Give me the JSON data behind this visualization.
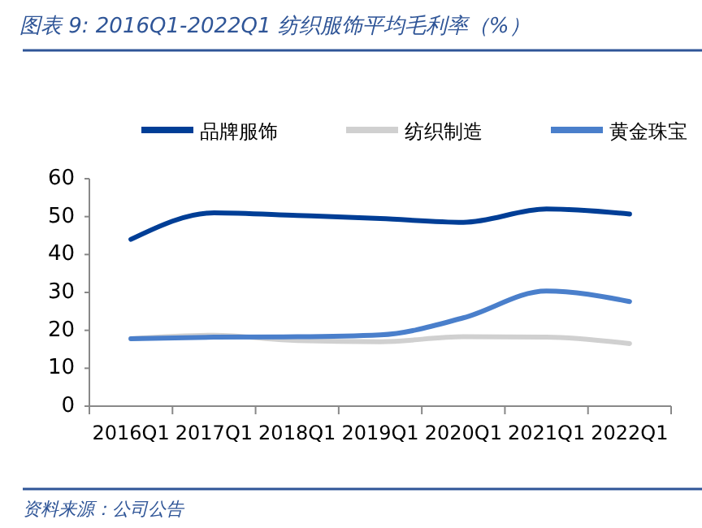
{
  "chart_data": {
    "type": "line",
    "title": "图表 9:  2016Q1-2022Q1 纺织服饰平均毛利率（%）",
    "annotations": [
      "资料来源：公司公告"
    ],
    "categories": [
      "2016Q1",
      "2017Q1",
      "2018Q1",
      "2019Q1",
      "2020Q1",
      "2021Q1",
      "2022Q1"
    ],
    "series": [
      {
        "name": "品牌服饰",
        "color": "#003e96",
        "values": [
          44,
          51,
          50.3,
          49.5,
          48.5,
          52,
          50.7
        ]
      },
      {
        "name": "纺织制造",
        "color": "#d0d0d0",
        "values": [
          17.8,
          18.7,
          17.3,
          17,
          18.3,
          18.2,
          16.5
        ]
      },
      {
        "name": "黄金珠宝",
        "color": "#4a7fcb",
        "values": [
          17.8,
          18.2,
          18.3,
          18.8,
          23.3,
          30.4,
          27.6
        ]
      }
    ],
    "ylim": [
      0,
      60
    ],
    "yticks": [
      0,
      10,
      20,
      30,
      40,
      50,
      60
    ],
    "grid": false,
    "legend": "top",
    "line_style": "solid",
    "marker": "none"
  }
}
